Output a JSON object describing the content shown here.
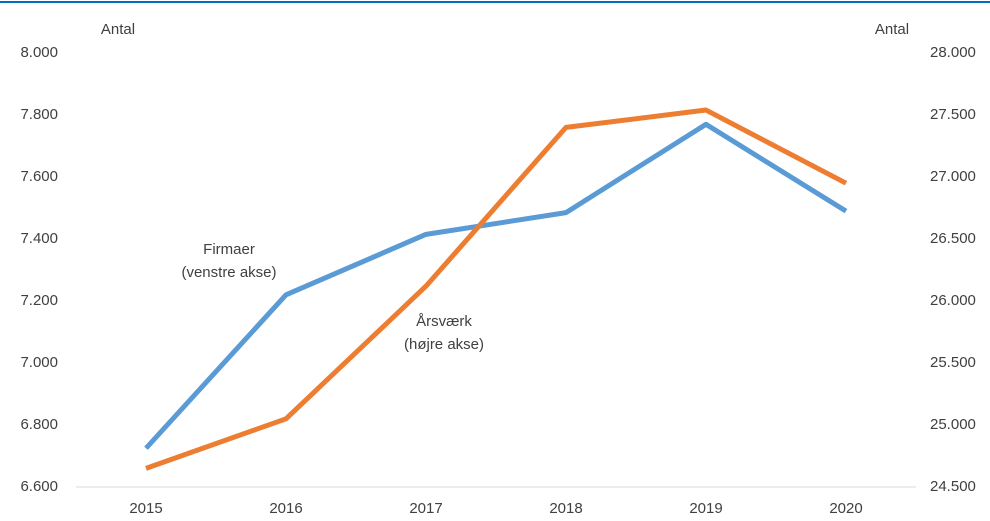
{
  "chart_data": {
    "type": "line",
    "y_label": "Antal",
    "y2_label": "Antal",
    "categories": [
      "2015",
      "2016",
      "2017",
      "2018",
      "2019",
      "2020"
    ],
    "series": [
      {
        "name": "Firmaer",
        "color": "#5b9bd5",
        "axis": "y",
        "values": [
          6725,
          7220,
          7415,
          7485,
          7770,
          7490
        ]
      },
      {
        "name": "Årsværk",
        "color": "#ed7d31",
        "axis": "y2",
        "values": [
          24650,
          25050,
          26120,
          27400,
          27540,
          26950
        ]
      }
    ],
    "annotations": [
      {
        "lines": [
          "Firmaer",
          "(venstre akse)"
        ]
      },
      {
        "lines": [
          "Årsværk",
          "(højre akse)"
        ]
      }
    ],
    "ylim": [
      6600,
      8000
    ],
    "yticks": [
      {
        "value": 6600,
        "label": "6.600"
      },
      {
        "value": 6800,
        "label": "6.800"
      },
      {
        "value": 7000,
        "label": "7.000"
      },
      {
        "value": 7200,
        "label": "7.200"
      },
      {
        "value": 7400,
        "label": "7.400"
      },
      {
        "value": 7600,
        "label": "7.600"
      },
      {
        "value": 7800,
        "label": "7.800"
      },
      {
        "value": 8000,
        "label": "8.000"
      }
    ],
    "y2lim": [
      24500,
      28000
    ],
    "y2ticks": [
      {
        "value": 24500,
        "label": "24.500"
      },
      {
        "value": 25000,
        "label": "25.000"
      },
      {
        "value": 25500,
        "label": "25.500"
      },
      {
        "value": 26000,
        "label": "26.000"
      },
      {
        "value": 26500,
        "label": "26.500"
      },
      {
        "value": 27000,
        "label": "27.000"
      },
      {
        "value": 27500,
        "label": "27.500"
      },
      {
        "value": 28000,
        "label": "28.000"
      }
    ],
    "grid": false
  }
}
